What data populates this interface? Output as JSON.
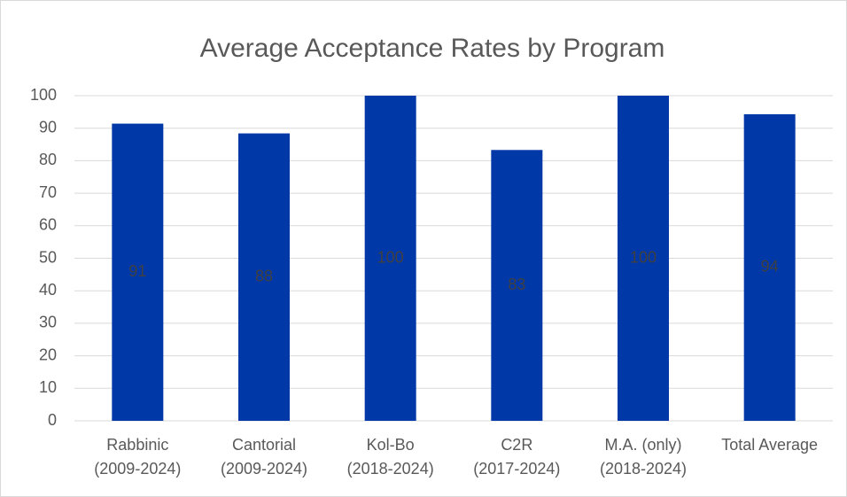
{
  "chart_data": {
    "type": "bar",
    "title": "Average Acceptance Rates by Program",
    "categories": [
      [
        "Rabbinic",
        "(2009-2024)"
      ],
      [
        "Cantorial",
        "(2009-2024)"
      ],
      [
        "Kol-Bo",
        "(2018-2024)"
      ],
      [
        "C2R",
        "(2017-2024)"
      ],
      [
        "M.A. (only)",
        "(2018-2024)"
      ],
      [
        "Total Average"
      ]
    ],
    "values": [
      91.4,
      88.4,
      100,
      83.3,
      100,
      94.3
    ],
    "value_labels": [
      "91",
      "88",
      "100",
      "83",
      "100",
      "94"
    ],
    "color": "#0038a8",
    "ylim": [
      0,
      100
    ],
    "yticks": [
      0,
      10,
      20,
      30,
      40,
      50,
      60,
      70,
      80,
      90,
      100
    ],
    "grid": true
  }
}
